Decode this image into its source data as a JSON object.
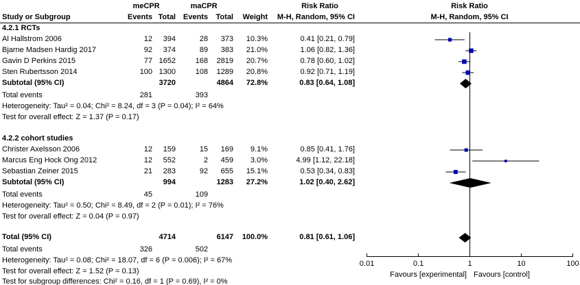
{
  "header": {
    "group1": "meCPR",
    "group2": "maCPR",
    "rr_left": "Risk Ratio",
    "rr_left_sub": "M-H, Random, 95% CI",
    "rr_right": "Risk Ratio",
    "rr_right_sub": "M-H, Random, 95% CI",
    "study": "Study or Subgroup",
    "events": "Events",
    "total": "Total",
    "weight": "Weight"
  },
  "colors": {
    "square": "#0000c0",
    "diamond": "#000000"
  },
  "chart_data": {
    "type": "forest",
    "scale": "log",
    "xlim": [
      0.01,
      100
    ],
    "ticks": [
      "0.01",
      "0.1",
      "1",
      "10",
      "100"
    ],
    "tick_values": [
      0.01,
      0.1,
      1,
      10,
      100
    ],
    "favours_left": "Favours [experimental]",
    "favours_right": "Favours [control]",
    "groups": [
      {
        "title": "4.2.1 RCTs",
        "studies": [
          {
            "name": "Al Hallstrom 2006",
            "e1": "12",
            "t1": "394",
            "e2": "28",
            "t2": "373",
            "weight": "10.3%",
            "w": 10.3,
            "rr_text": "0.41 [0.21, 0.79]",
            "rr": 0.41,
            "lo": 0.21,
            "hi": 0.79
          },
          {
            "name": "Bjarne Madsen Hardig 2017",
            "e1": "92",
            "t1": "374",
            "e2": "89",
            "t2": "383",
            "weight": "21.0%",
            "w": 21.0,
            "rr_text": "1.06 [0.82, 1.36]",
            "rr": 1.06,
            "lo": 0.82,
            "hi": 1.36
          },
          {
            "name": "Gavin D Perkins 2015",
            "e1": "77",
            "t1": "1652",
            "e2": "168",
            "t2": "2819",
            "weight": "20.7%",
            "w": 20.7,
            "rr_text": "0.78 [0.60, 1.02]",
            "rr": 0.78,
            "lo": 0.6,
            "hi": 1.02
          },
          {
            "name": "Sten Rubertsson 2014",
            "e1": "100",
            "t1": "1300",
            "e2": "108",
            "t2": "1289",
            "weight": "20.8%",
            "w": 20.8,
            "rr_text": "0.92 [0.71, 1.19]",
            "rr": 0.92,
            "lo": 0.71,
            "hi": 1.19
          }
        ],
        "subtotal": {
          "label": "Subtotal (95% CI)",
          "t1": "3720",
          "t2": "4864",
          "weight": "72.8%",
          "rr_text": "0.83 [0.64, 1.08]",
          "rr": 0.83,
          "lo": 0.64,
          "hi": 1.08
        },
        "total_events": {
          "label": "Total events",
          "e1": "281",
          "e2": "393"
        },
        "heterogeneity": "Heterogeneity: Tau² = 0.04; Chi² = 8.24, df = 3 (P = 0.04); I² = 64%",
        "overall": "Test for overall effect: Z = 1.37 (P = 0.17)"
      },
      {
        "title": "4.2.2 cohort studies",
        "studies": [
          {
            "name": "Christer Axelsson 2006",
            "e1": "12",
            "t1": "159",
            "e2": "15",
            "t2": "169",
            "weight": "9.1%",
            "w": 9.1,
            "rr_text": "0.85 [0.41, 1.76]",
            "rr": 0.85,
            "lo": 0.41,
            "hi": 1.76
          },
          {
            "name": "Marcus Eng Hock Ong 2012",
            "e1": "12",
            "t1": "552",
            "e2": "2",
            "t2": "459",
            "weight": "3.0%",
            "w": 3.0,
            "rr_text": "4.99 [1.12, 22.18]",
            "rr": 4.99,
            "lo": 1.12,
            "hi": 22.18
          },
          {
            "name": "Sebastian Zeiner 2015",
            "e1": "21",
            "t1": "283",
            "e2": "92",
            "t2": "655",
            "weight": "15.1%",
            "w": 15.1,
            "rr_text": "0.53 [0.34, 0.83]",
            "rr": 0.53,
            "lo": 0.34,
            "hi": 0.83
          }
        ],
        "subtotal": {
          "label": "Subtotal (95% CI)",
          "t1": "994",
          "t2": "1283",
          "weight": "27.2%",
          "rr_text": "1.02 [0.40, 2.62]",
          "rr": 1.02,
          "lo": 0.4,
          "hi": 2.62
        },
        "total_events": {
          "label": "Total events",
          "e1": "45",
          "e2": "109"
        },
        "heterogeneity": "Heterogeneity: Tau² = 0.50; Chi² = 8.49, df = 2 (P = 0.01); I² = 76%",
        "overall": "Test for overall effect: Z = 0.04 (P = 0.97)"
      }
    ],
    "total": {
      "label": "Total (95% CI)",
      "t1": "4714",
      "t2": "6147",
      "weight": "100.0%",
      "rr_text": "0.81 [0.61, 1.06]",
      "rr": 0.81,
      "lo": 0.61,
      "hi": 1.06
    },
    "total_events": {
      "label": "Total events",
      "e1": "326",
      "e2": "502"
    },
    "heterogeneity": "Heterogeneity: Tau² = 0.08; Chi² = 18.07, df = 6 (P = 0.006); I² = 67%",
    "overall": "Test for overall effect: Z = 1.52 (P = 0.13)",
    "subgroup": "Test for subgroup differences: Chi² = 0.16, df = 1 (P = 0.69), I² = 0%"
  }
}
